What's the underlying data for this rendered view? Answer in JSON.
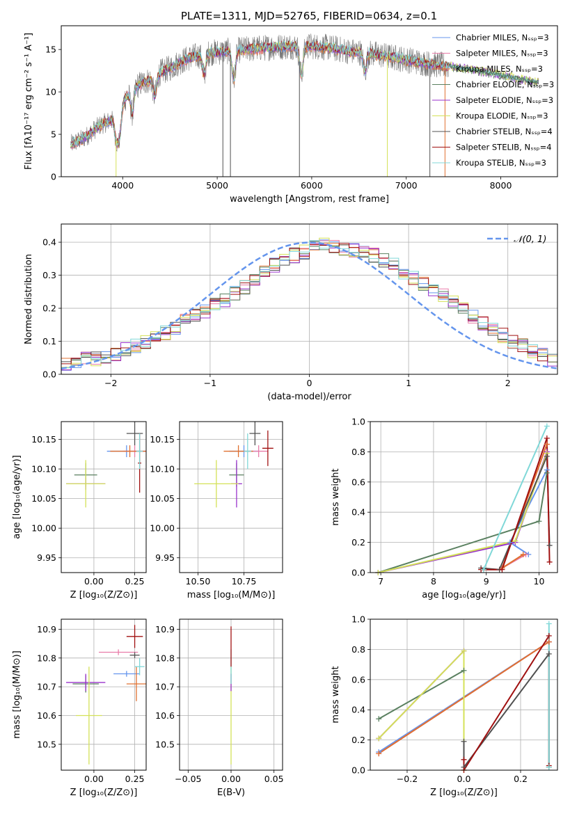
{
  "figure_title": "PLATE=1311, MJD=52765, FIBERID=0634, z=0.1",
  "colors": {
    "Chabrier MILES": "#6495ed",
    "Salpeter MILES": "#e87ca8",
    "Kroupa MILES": "#e07030",
    "Chabrier ELODIE": "#5a8060",
    "Salpeter ELODIE": "#9932cc",
    "Kroupa ELODIE": "#d4e157",
    "Chabrier STELIB": "#505050",
    "Salpeter STELIB": "#a01010",
    "Kroupa STELIB": "#80d8d8"
  },
  "chart_data": [
    {
      "id": "spectrum",
      "type": "line",
      "xlabel": "wavelength [Angstrom, rest frame]",
      "ylabel": "Flux [fλ10⁻¹⁷ erg cm⁻² s⁻¹ A⁻¹]",
      "xlim": [
        3350,
        8600
      ],
      "ylim": [
        0,
        17.8
      ],
      "xticks": [
        4000,
        5000,
        6000,
        7000,
        8000
      ],
      "yticks": [
        0,
        5,
        10,
        15
      ],
      "grid": false,
      "legend_position": "right",
      "legend": [
        "Chabrier MILES, Nₛₛₚ=3",
        "Salpeter MILES, Nₛₛₚ=3",
        "Kroupa MILES, Nₛₛₚ=3",
        "Chabrier ELODIE, Nₛₛₚ=3",
        "Salpeter ELODIE, Nₛₛₚ=3",
        "Kroupa ELODIE, Nₛₛₚ=3",
        "Chabrier STELIB, Nₛₛₚ=4",
        "Salpeter STELIB, Nₛₛₚ=4",
        "Kroupa STELIB, Nₛₛₚ=3"
      ],
      "legend_series": [
        "Chabrier MILES",
        "Salpeter MILES",
        "Kroupa MILES",
        "Chabrier ELODIE",
        "Salpeter ELODIE",
        "Kroupa ELODIE",
        "Chabrier STELIB",
        "Salpeter STELIB",
        "Kroupa STELIB"
      ],
      "continuum": {
        "x": [
          3450,
          3600,
          3750,
          3900,
          4000,
          4100,
          4200,
          4300,
          4400,
          4500,
          4600,
          4700,
          4800,
          4900,
          5000,
          5200,
          5400,
          5600,
          5800,
          6000,
          6200,
          6400,
          6600,
          6800,
          7000,
          7200,
          7400,
          7600,
          7800,
          8000,
          8200,
          8400
        ],
        "y": [
          3.8,
          4.6,
          6.0,
          6.8,
          8.8,
          10.5,
          11.0,
          11.5,
          12.3,
          12.8,
          13.5,
          14.0,
          14.3,
          14.6,
          14.7,
          14.9,
          15.1,
          15.3,
          15.4,
          15.4,
          15.2,
          14.8,
          14.6,
          14.2,
          13.8,
          13.4,
          13.1,
          12.8,
          12.4,
          12.0,
          11.5,
          11.1
        ]
      },
      "data_range": [
        3450,
        7450
      ],
      "model_range": [
        3450,
        8400
      ],
      "dips": [
        {
          "x": 3934,
          "y": 4.5
        },
        {
          "x": 3969,
          "y": 5.0
        },
        {
          "x": 4102,
          "y": 7.5
        },
        {
          "x": 4340,
          "y": 9.5
        },
        {
          "x": 4861,
          "y": 12.0
        },
        {
          "x": 5175,
          "y": 11.5
        },
        {
          "x": 5890,
          "y": 12.0
        },
        {
          "x": 6563,
          "y": 12.5
        }
      ],
      "spikes": [
        {
          "x": 5060,
          "y": 0,
          "series": "Chabrier STELIB"
        },
        {
          "x": 5140,
          "y": 0,
          "series": "Chabrier STELIB"
        },
        {
          "x": 5870,
          "y": 0,
          "series": "Chabrier STELIB"
        },
        {
          "x": 6800,
          "y": 0,
          "series": "Kroupa ELODIE"
        },
        {
          "x": 7250,
          "y": 0,
          "series": "Chabrier STELIB"
        },
        {
          "x": 7410,
          "y": 0,
          "series": "Kroupa MILES"
        },
        {
          "x": 3930,
          "y": 0,
          "series": "Kroupa ELODIE"
        }
      ]
    },
    {
      "id": "residuals",
      "type": "histogram",
      "xlabel": "(data-model)/error",
      "ylabel": "Normed distribution",
      "xlim": [
        -2.5,
        2.5
      ],
      "ylim": [
        0,
        0.455
      ],
      "xticks": [
        -2,
        -1,
        0,
        1,
        2
      ],
      "yticks": [
        0.0,
        0.1,
        0.2,
        0.3,
        0.4
      ],
      "grid": true,
      "legend_position": "top-right",
      "gaussian_label": "𝒩(0, 1)",
      "bin_edges_range": [
        -2.5,
        2.5
      ],
      "bin_width": 0.1,
      "base_heights": [
        0.027,
        0.035,
        0.045,
        0.048,
        0.055,
        0.063,
        0.074,
        0.085,
        0.098,
        0.108,
        0.125,
        0.14,
        0.16,
        0.175,
        0.19,
        0.21,
        0.225,
        0.245,
        0.265,
        0.285,
        0.31,
        0.33,
        0.345,
        0.36,
        0.37,
        0.385,
        0.39,
        0.385,
        0.38,
        0.375,
        0.37,
        0.36,
        0.345,
        0.33,
        0.31,
        0.29,
        0.275,
        0.26,
        0.24,
        0.22,
        0.195,
        0.175,
        0.155,
        0.135,
        0.118,
        0.1,
        0.085,
        0.07,
        0.06,
        0.045
      ]
    },
    {
      "id": "age_vs_Z",
      "type": "errorbar",
      "xlabel": "Z [log₁₀(Z/Z⊙)]",
      "ylabel": "age  [log₁₀(age/yr)]",
      "xlim": [
        -0.2,
        0.32
      ],
      "ylim": [
        9.925,
        10.18
      ],
      "xticks": [
        0.0,
        0.25
      ],
      "xtick_labels": [
        "0.00",
        "0.25"
      ],
      "yticks": [
        9.95,
        10.0,
        10.05,
        10.1,
        10.15
      ],
      "grid": true,
      "points": [
        {
          "series": "Chabrier MILES",
          "x": 0.2,
          "y": 10.13,
          "xerr": 0.12,
          "yerr": 0.01
        },
        {
          "series": "Salpeter MILES",
          "x": 0.25,
          "y": 10.13,
          "xerr": 0.07,
          "yerr": 0.01
        },
        {
          "series": "Kroupa MILES",
          "x": 0.22,
          "y": 10.13,
          "xerr": 0.12,
          "yerr": 0.01
        },
        {
          "series": "Chabrier ELODIE",
          "x": -0.05,
          "y": 10.09,
          "xerr": 0.07,
          "yerr": 0.02
        },
        {
          "series": "Salpeter ELODIE",
          "x": -0.05,
          "y": 10.075,
          "xerr": 0.12,
          "yerr": 0.01
        },
        {
          "series": "Kroupa ELODIE",
          "x": -0.05,
          "y": 10.075,
          "xerr": 0.12,
          "yerr": 0.04
        },
        {
          "series": "Chabrier STELIB",
          "x": 0.25,
          "y": 10.16,
          "xerr": 0.05,
          "yerr": 0.02
        },
        {
          "series": "Salpeter STELIB",
          "x": 0.28,
          "y": 10.11,
          "xerr": 0.01,
          "yerr": 0.05
        },
        {
          "series": "Kroupa STELIB",
          "x": 0.28,
          "y": 10.13,
          "xerr": 0.02,
          "yerr": 0.03
        }
      ]
    },
    {
      "id": "age_vs_mass",
      "type": "errorbar",
      "xlabel": "mass [log₁₀(M/M⊙)]",
      "ylabel": "",
      "xlim": [
        10.4,
        10.96
      ],
      "ylim": [
        9.925,
        10.18
      ],
      "xticks": [
        10.5,
        10.75
      ],
      "xtick_labels": [
        "10.50",
        "10.75"
      ],
      "yticks": [
        9.95,
        10.0,
        10.05,
        10.1,
        10.15
      ],
      "grid": true,
      "points": [
        {
          "series": "Chabrier MILES",
          "x": 10.75,
          "y": 10.13,
          "xerr": 0.08,
          "yerr": 0.01
        },
        {
          "series": "Salpeter MILES",
          "x": 10.83,
          "y": 10.13,
          "xerr": 0.05,
          "yerr": 0.01
        },
        {
          "series": "Kroupa MILES",
          "x": 10.72,
          "y": 10.13,
          "xerr": 0.08,
          "yerr": 0.01
        },
        {
          "series": "Chabrier ELODIE",
          "x": 10.71,
          "y": 10.09,
          "xerr": 0.04,
          "yerr": 0.02
        },
        {
          "series": "Salpeter ELODIE",
          "x": 10.71,
          "y": 10.075,
          "xerr": 0.03,
          "yerr": 0.04
        },
        {
          "series": "Kroupa ELODIE",
          "x": 10.6,
          "y": 10.075,
          "xerr": 0.12,
          "yerr": 0.04
        },
        {
          "series": "Chabrier STELIB",
          "x": 10.81,
          "y": 10.16,
          "xerr": 0.03,
          "yerr": 0.02
        },
        {
          "series": "Salpeter STELIB",
          "x": 10.88,
          "y": 10.135,
          "xerr": 0.03,
          "yerr": 0.03
        },
        {
          "series": "Kroupa STELIB",
          "x": 10.77,
          "y": 10.13,
          "xerr": 0.02,
          "yerr": 0.03
        }
      ]
    },
    {
      "id": "weights_vs_age",
      "type": "line",
      "xlabel": "age  [log₁₀(age/yr)]",
      "ylabel": "mass weight",
      "xlim": [
        6.8,
        10.35
      ],
      "ylim": [
        0,
        1.0
      ],
      "xticks": [
        7,
        8,
        9,
        10
      ],
      "yticks": [
        0.0,
        0.2,
        0.4,
        0.6,
        0.8,
        1.0
      ],
      "grid": true,
      "series": [
        {
          "name": "Chabrier MILES",
          "x": [
            9.8,
            9.45,
            10.15
          ],
          "y": [
            0.12,
            0.2,
            0.68
          ]
        },
        {
          "name": "Salpeter MILES",
          "x": [
            9.75,
            9.3,
            10.15
          ],
          "y": [
            0.12,
            0.03,
            0.85
          ]
        },
        {
          "name": "Kroupa MILES",
          "x": [
            9.7,
            9.3,
            10.15
          ],
          "y": [
            0.12,
            0.03,
            0.85
          ]
        },
        {
          "name": "Chabrier ELODIE",
          "x": [
            6.95,
            10.0,
            10.15
          ],
          "y": [
            0.0,
            0.34,
            0.66
          ]
        },
        {
          "name": "Salpeter ELODIE",
          "x": [
            6.95,
            9.55,
            10.15
          ],
          "y": [
            0.0,
            0.2,
            0.8
          ]
        },
        {
          "name": "Kroupa ELODIE",
          "x": [
            6.95,
            9.55,
            10.15
          ],
          "y": [
            0.0,
            0.21,
            0.79
          ]
        },
        {
          "name": "Chabrier STELIB",
          "x": [
            8.9,
            9.25,
            10.15,
            10.2
          ],
          "y": [
            0.03,
            0.02,
            0.77,
            0.18
          ]
        },
        {
          "name": "Salpeter STELIB",
          "x": [
            8.9,
            9.3,
            10.15,
            10.2
          ],
          "y": [
            0.02,
            0.02,
            0.89,
            0.07
          ]
        },
        {
          "name": "Kroupa STELIB",
          "x": [
            8.95,
            10.15
          ],
          "y": [
            0.02,
            0.97
          ]
        }
      ]
    },
    {
      "id": "mass_vs_Z",
      "type": "errorbar",
      "xlabel": "Z [log₁₀(Z/Z⊙)]",
      "ylabel": "mass [log₁₀(M/M⊙)]",
      "xlim": [
        -0.2,
        0.32
      ],
      "ylim": [
        10.41,
        10.935
      ],
      "xticks": [
        0.0,
        0.25
      ],
      "xtick_labels": [
        "0.00",
        "0.25"
      ],
      "yticks": [
        10.5,
        10.6,
        10.7,
        10.8,
        10.9
      ],
      "grid": true,
      "points": [
        {
          "series": "Chabrier MILES",
          "x": 0.2,
          "y": 10.745,
          "xerr": 0.08,
          "yerr": 0.01
        },
        {
          "series": "Salpeter MILES",
          "x": 0.15,
          "y": 10.82,
          "xerr": 0.12,
          "yerr": 0.01
        },
        {
          "series": "Kroupa MILES",
          "x": 0.26,
          "y": 10.71,
          "xerr": 0.06,
          "yerr": 0.06
        },
        {
          "series": "Chabrier ELODIE",
          "x": -0.05,
          "y": 10.71,
          "xerr": 0.08,
          "yerr": 0.03
        },
        {
          "series": "Salpeter ELODIE",
          "x": -0.05,
          "y": 10.715,
          "xerr": 0.12,
          "yerr": 0.03
        },
        {
          "series": "Kroupa ELODIE",
          "x": -0.03,
          "y": 10.6,
          "xerr": 0.08,
          "yerr": 0.17
        },
        {
          "series": "Chabrier STELIB",
          "x": 0.25,
          "y": 10.81,
          "xerr": 0.03,
          "yerr": 0.01
        },
        {
          "series": "Salpeter STELIB",
          "x": 0.25,
          "y": 10.875,
          "xerr": 0.05,
          "yerr": 0.04
        },
        {
          "series": "Kroupa STELIB",
          "x": 0.28,
          "y": 10.77,
          "xerr": 0.03,
          "yerr": 0.03
        }
      ]
    },
    {
      "id": "mass_vs_EBV",
      "type": "errorbar",
      "xlabel": "E(B-V)",
      "ylabel": "",
      "xlim": [
        -0.06,
        0.06
      ],
      "ylim": [
        10.41,
        10.935
      ],
      "xticks": [
        -0.05,
        0.0,
        0.05
      ],
      "xtick_labels": [
        "−0.05",
        "0.00",
        "0.05"
      ],
      "yticks": [
        10.5,
        10.6,
        10.7,
        10.8,
        10.9
      ],
      "grid": true,
      "points": [
        {
          "series": "Kroupa ELODIE",
          "x": 0.0,
          "y": 10.6,
          "xerr": 0,
          "yerr": 0.17
        },
        {
          "series": "Salpeter ELODIE",
          "x": 0.0,
          "y": 10.715,
          "xerr": 0,
          "yerr": 0.03
        },
        {
          "series": "Kroupa STELIB",
          "x": 0.0,
          "y": 10.77,
          "xerr": 0,
          "yerr": 0.06
        },
        {
          "series": "Salpeter STELIB",
          "x": 0.0,
          "y": 10.84,
          "xerr": 0,
          "yerr": 0.07
        }
      ]
    },
    {
      "id": "weights_vs_Z",
      "type": "line",
      "xlabel": "Z [log₁₀(Z/Z⊙)]",
      "ylabel": "mass weight",
      "xlim": [
        -0.33,
        0.33
      ],
      "ylim": [
        0,
        1.0
      ],
      "xticks": [
        -0.2,
        0.0,
        0.2
      ],
      "xtick_labels": [
        "−0.2",
        "0.0",
        "0.2"
      ],
      "yticks": [
        0.0,
        0.2,
        0.4,
        0.6,
        0.8,
        1.0
      ],
      "grid": true,
      "series": [
        {
          "name": "Chabrier MILES",
          "x": [
            -0.3,
            0.3
          ],
          "y": [
            0.12,
            0.85
          ]
        },
        {
          "name": "Salpeter MILES",
          "x": [
            -0.3,
            0.3
          ],
          "y": [
            0.11,
            0.85
          ]
        },
        {
          "name": "Kroupa MILES",
          "x": [
            -0.3,
            0.3
          ],
          "y": [
            0.11,
            0.85
          ]
        },
        {
          "name": "Chabrier ELODIE",
          "x": [
            -0.3,
            0.0
          ],
          "y": [
            0.34,
            0.66
          ]
        },
        {
          "name": "Salpeter ELODIE",
          "x": [
            -0.3,
            0.0
          ],
          "y": [
            0.21,
            0.79
          ]
        },
        {
          "name": "Kroupa ELODIE",
          "x": [
            -0.3,
            0.0,
            0.0
          ],
          "y": [
            0.21,
            0.79,
            0.0
          ]
        },
        {
          "name": "Chabrier STELIB",
          "x": [
            0.0,
            0.0,
            0.3,
            0.3
          ],
          "y": [
            0.19,
            0.02,
            0.77,
            0.02
          ]
        },
        {
          "name": "Salpeter STELIB",
          "x": [
            0.0,
            0.0,
            0.3,
            0.3
          ],
          "y": [
            0.07,
            0.0,
            0.89,
            0.03
          ]
        },
        {
          "name": "Kroupa STELIB",
          "x": [
            0.3,
            0.3
          ],
          "y": [
            0.97,
            0.02
          ]
        }
      ]
    }
  ]
}
